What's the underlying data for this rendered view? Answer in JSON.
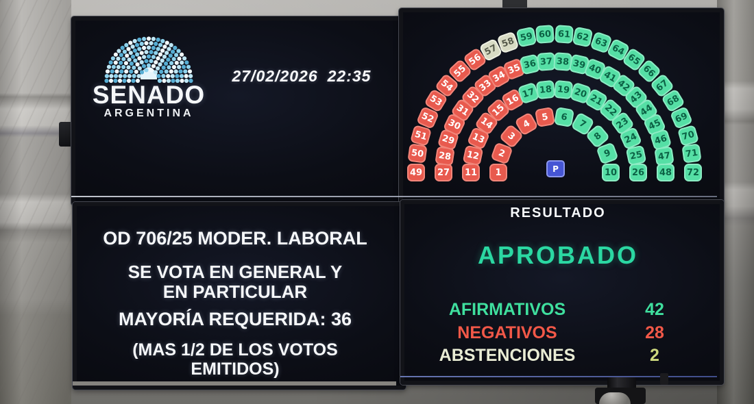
{
  "board": {
    "info_panel": {
      "logo_title": "SENADO",
      "logo_subtitle": "ARGENTINA",
      "date": "27/02/2026",
      "time": "22:35"
    },
    "seat_map": {
      "president_label": "P",
      "rows": [
        {
          "radius": 82,
          "numbers": [
            1,
            2,
            3,
            4,
            5,
            6,
            7,
            8,
            9,
            10
          ],
          "votes": [
            "neg",
            "neg",
            "neg",
            "neg",
            "neg",
            "aff",
            "aff",
            "aff",
            "aff",
            "aff"
          ]
        },
        {
          "radius": 122,
          "numbers": [
            11,
            12,
            13,
            14,
            15,
            16,
            17,
            18,
            19,
            20,
            21,
            22,
            23,
            24,
            25,
            26
          ],
          "votes": [
            "neg",
            "neg",
            "neg",
            "neg",
            "neg",
            "neg",
            "aff",
            "aff",
            "aff",
            "aff",
            "aff",
            "aff",
            "aff",
            "aff",
            "aff",
            "aff"
          ]
        },
        {
          "radius": 162,
          "numbers": [
            27,
            28,
            29,
            30,
            31,
            32,
            33,
            34,
            35,
            36,
            37,
            38,
            39,
            40,
            41,
            42,
            43,
            44,
            45,
            46,
            47,
            48
          ],
          "votes": [
            "neg",
            "neg",
            "neg",
            "neg",
            "neg",
            "neg",
            "neg",
            "neg",
            "neg",
            "aff",
            "aff",
            "aff",
            "aff",
            "aff",
            "aff",
            "aff",
            "aff",
            "aff",
            "aff",
            "aff",
            "aff",
            "aff"
          ]
        },
        {
          "radius": 202,
          "numbers": [
            49,
            50,
            51,
            52,
            53,
            54,
            55,
            56,
            57,
            58,
            59,
            60,
            61,
            62,
            63,
            64,
            65,
            66,
            67,
            68,
            69,
            70,
            71,
            72
          ],
          "votes": [
            "neg",
            "neg",
            "neg",
            "neg",
            "neg",
            "neg",
            "neg",
            "neg",
            "abs",
            "abs",
            "aff",
            "aff",
            "aff",
            "aff",
            "aff",
            "aff",
            "aff",
            "aff",
            "aff",
            "aff",
            "aff",
            "aff",
            "aff",
            "aff"
          ]
        }
      ]
    },
    "topic_panel": {
      "line1": "OD 706/25 MODER. LABORAL",
      "line2": "SE VOTA EN GENERAL Y EN PARTICULAR",
      "line3": "MAYORÍA REQUERIDA: 36",
      "line4": "(MAS 1/2 DE LOS VOTOS EMITIDOS)"
    },
    "result_panel": {
      "title": "RESULTADO",
      "verdict": "APROBADO",
      "rows": [
        {
          "label": "AFIRMATIVOS",
          "value": "42",
          "label_color": "#3fdf9e",
          "value_color": "#3fdf9e"
        },
        {
          "label": "NEGATIVOS",
          "value": "28",
          "label_color": "#f25848",
          "value_color": "#f25848"
        },
        {
          "label": "ABSTENCIONES",
          "value": "2",
          "label_color": "#e9ecd4",
          "value_color": "#cdd97e"
        }
      ]
    }
  },
  "colors": {
    "verdict_text": "#2bd8a2",
    "seat": {
      "aff": {
        "bg": "#55dfa5",
        "text": "#0c6245"
      },
      "neg": {
        "bg": "#e85a4e",
        "text": "#ffffff"
      },
      "abs": {
        "bg": "#d8dbc4",
        "text": "#565a4b"
      }
    },
    "president": {
      "bg": "#4656d4",
      "text": "#ffffff"
    },
    "logo_dot_colors": [
      "#8fd3ed",
      "#f2fafd",
      "#bfe7f5",
      "#57aed4"
    ]
  }
}
